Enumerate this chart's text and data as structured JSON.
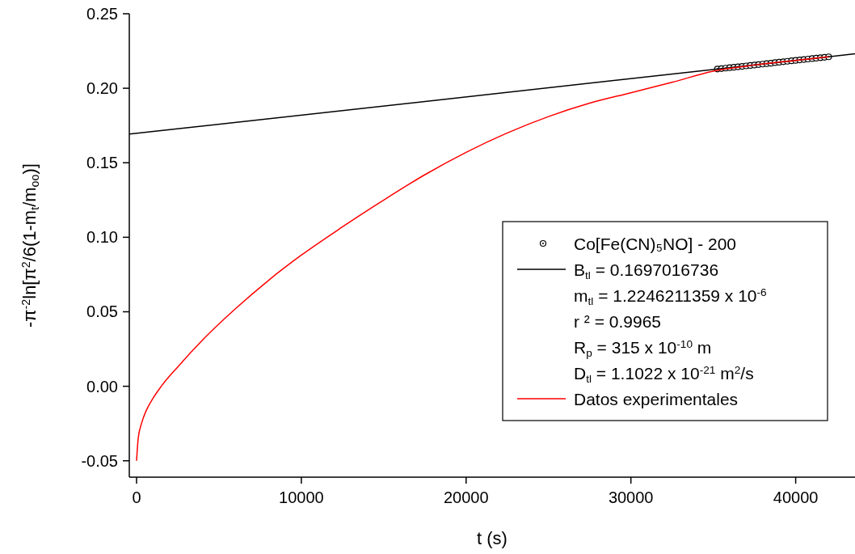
{
  "chart_data": {
    "type": "line",
    "xlabel": "t (s)",
    "ylabel": "-π$^{-2}$ln[π$^{2}$/6(1-m$_{t}$/m$_{oo}$)]",
    "xlim": [
      -440,
      43600
    ],
    "ylim": [
      -0.061,
      0.25
    ],
    "xticks": [
      0,
      10000,
      20000,
      30000,
      40000
    ],
    "yticks": [
      {
        "value": -0.05,
        "label": "-0.05"
      },
      {
        "value": 0,
        "label": "0.00"
      },
      {
        "value": 0.05,
        "label": "0.05"
      },
      {
        "value": 0.1,
        "label": "0.10"
      },
      {
        "value": 0.15,
        "label": "0.15"
      },
      {
        "value": 0.2,
        "label": "0.20"
      },
      {
        "value": 0.25,
        "label": "0.25"
      }
    ],
    "grid": false,
    "legend": "right",
    "series": [
      {
        "name": "Co[Fe(CN)₅NO] - 200",
        "type": "scatter",
        "marker": "circle",
        "color": "#000000",
        "x": [
          35250,
          35500,
          35750,
          36000,
          36250,
          36500,
          36750,
          37000,
          37250,
          37500,
          37750,
          38000,
          38250,
          38500,
          38750,
          39000,
          39250,
          39500,
          39750,
          40000,
          40250,
          40500,
          40750,
          41000,
          41250,
          41500,
          41750,
          42000
        ],
        "values": [
          0.2129,
          0.2132,
          0.2135,
          0.2138,
          0.2141,
          0.2144,
          0.2147,
          0.215,
          0.2153,
          0.2156,
          0.2159,
          0.2162,
          0.2165,
          0.2168,
          0.2172,
          0.2175,
          0.2178,
          0.2181,
          0.2184,
          0.2187,
          0.219,
          0.2193,
          0.2196,
          0.2199,
          0.2202,
          0.2205,
          0.2208,
          0.2211
        ]
      },
      {
        "name": "B$_{tl}$ = 0.1697016736",
        "color": "#000000",
        "x": [
          -440,
          43600
        ],
        "values": [
          0.1692,
          0.2231
        ]
      },
      {
        "name": "Datos experimentales",
        "color": "#ff0000",
        "x": [
          0,
          100,
          300,
          600,
          1000,
          1500,
          2500,
          4000,
          6000,
          8000,
          10000,
          12500,
          15000,
          17500,
          20000,
          22500,
          25000,
          27500,
          30000,
          32500,
          35000,
          37500,
          40000,
          42000
        ],
        "values": [
          -0.05,
          -0.035,
          -0.025,
          -0.016,
          -0.008,
          0.0,
          0.013,
          0.031,
          0.052,
          0.071,
          0.088,
          0.107,
          0.125,
          0.142,
          0.157,
          0.17,
          0.181,
          0.19,
          0.197,
          0.204,
          0.2115,
          0.2156,
          0.2187,
          0.2211
        ]
      }
    ],
    "annotations": [
      "m$_{tl}$ = 1.2246211359 x 10$^{-6}$",
      "r ² = 0.9965",
      "R$_{p}$ = 315 x 10$^{-10}$ m",
      "D$_{tl}$ = 1.1022 x 10$^{-21}$ m$^{2}$/s"
    ]
  }
}
